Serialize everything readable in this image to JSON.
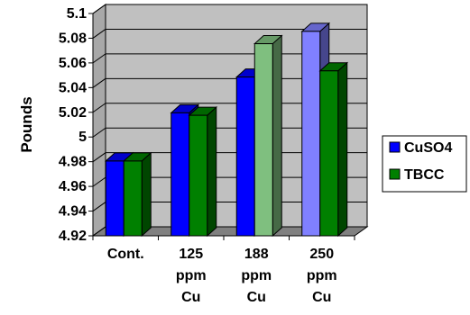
{
  "chart_data": {
    "type": "bar",
    "title": "",
    "xlabel": "",
    "ylabel": "Pounds",
    "ylim": [
      4.92,
      5.1
    ],
    "yticks": [
      "4.92",
      "4.94",
      "4.96",
      "4.98",
      "5",
      "5.02",
      "5.04",
      "5.06",
      "5.08",
      "5.1"
    ],
    "categories": [
      [
        "Cont."
      ],
      [
        "125",
        "ppm",
        "Cu"
      ],
      [
        "188",
        "ppm",
        "Cu"
      ],
      [
        "250",
        "ppm",
        "Cu"
      ]
    ],
    "series": [
      {
        "name": "CuSO4",
        "values": [
          4.982,
          5.021,
          5.05,
          5.087
        ],
        "color": "#0000ff"
      },
      {
        "name": "TBCC",
        "values": [
          4.982,
          5.019,
          5.077,
          5.055
        ],
        "color": "#008000"
      }
    ],
    "highlight_colors": {
      "CuSO4": "#8080ff",
      "TBCC": "#7fbf7f"
    },
    "grid": true,
    "legend": "right",
    "three_d": true
  }
}
